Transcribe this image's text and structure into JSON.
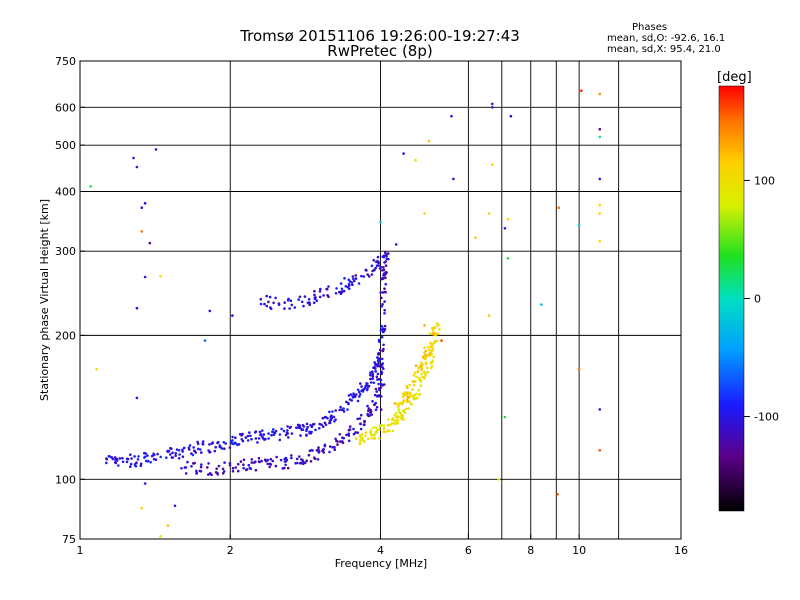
{
  "header": {
    "title": "Tromsø 20151106 19:26:00-19:27:43",
    "subtitle": "RwPretec (8p)",
    "stats_heading": "Phases",
    "stats_o": "mean, sd,O: -92.6, 16.1",
    "stats_x": "mean, sd,X:  95.4, 21.0"
  },
  "colorbar": {
    "label": "[deg]",
    "range": [
      -180,
      180
    ],
    "ticks": [
      100,
      0,
      -100
    ],
    "tick_labels": [
      "100",
      "0",
      "-100"
    ]
  },
  "chart_data": {
    "type": "scatter",
    "xlabel": "Frequency [MHz]",
    "ylabel": "Stationary phase Virtual Height [km]",
    "x_scale": "log",
    "y_scale": "log",
    "xlim": [
      1,
      16
    ],
    "ylim": [
      75,
      750
    ],
    "x_ticks": [
      1,
      2,
      4,
      6,
      8,
      10,
      16
    ],
    "y_ticks": [
      75,
      100,
      200,
      300,
      400,
      500,
      600,
      750
    ],
    "x_minor_lines": [
      1,
      2,
      4,
      6,
      7,
      8,
      9,
      10,
      12
    ],
    "y_minor_lines": [
      100,
      200,
      300,
      400,
      500,
      600
    ],
    "grid": true,
    "color_variable": "Phase [deg]",
    "traces": [
      {
        "freq": [
          1.12,
          1.22,
          1.33,
          1.45,
          1.58,
          1.72,
          1.88,
          2.05,
          2.22,
          2.4,
          2.6,
          2.8,
          3.0,
          3.2,
          3.4,
          3.6,
          3.8,
          3.9,
          4.0
        ],
        "height": [
          109,
          109,
          110,
          112,
          114,
          116,
          118,
          120,
          122,
          124,
          125,
          127,
          130,
          135,
          142,
          150,
          160,
          170,
          180
        ],
        "phase": -100
      },
      {
        "freq": [
          1.6,
          1.8,
          2.0,
          2.2,
          2.45,
          2.7,
          2.95,
          3.2,
          3.45,
          3.7,
          3.9,
          4.05
        ],
        "height": [
          106,
          105,
          106,
          107,
          108,
          109,
          112,
          117,
          124,
          133,
          145,
          160
        ],
        "phase": -112
      },
      {
        "freq": [
          2.3,
          2.6,
          2.9,
          3.2,
          3.5,
          3.8,
          4.0
        ],
        "height": [
          235,
          233,
          240,
          248,
          258,
          270,
          290
        ],
        "phase": -105
      },
      {
        "freq": [
          3.95,
          4.0,
          4.02,
          4.05,
          4.08,
          4.1
        ],
        "height": [
          140,
          170,
          200,
          240,
          270,
          300
        ],
        "phase": -108
      },
      {
        "freq": [
          3.6,
          3.8,
          4.0,
          4.2,
          4.4,
          4.6,
          4.8,
          5.0,
          5.1
        ],
        "height": [
          120,
          123,
          126,
          130,
          136,
          145,
          158,
          175,
          200
        ],
        "phase": 95
      },
      {
        "freq": [
          4.3,
          4.5,
          4.7,
          4.9,
          5.1,
          5.2
        ],
        "height": [
          140,
          150,
          165,
          180,
          195,
          210
        ],
        "phase": 110
      }
    ],
    "scattered_points": [
      {
        "freq": 1.05,
        "height": 410,
        "phase": 30
      },
      {
        "freq": 1.28,
        "height": 470,
        "phase": -100
      },
      {
        "freq": 1.3,
        "height": 450,
        "phase": -110
      },
      {
        "freq": 1.42,
        "height": 490,
        "phase": -120
      },
      {
        "freq": 1.33,
        "height": 370,
        "phase": -110
      },
      {
        "freq": 1.35,
        "height": 378,
        "phase": -100
      },
      {
        "freq": 1.33,
        "height": 330,
        "phase": 150
      },
      {
        "freq": 1.38,
        "height": 312,
        "phase": -130
      },
      {
        "freq": 1.35,
        "height": 265,
        "phase": -100
      },
      {
        "freq": 1.45,
        "height": 266,
        "phase": 100
      },
      {
        "freq": 1.3,
        "height": 228,
        "phase": -100
      },
      {
        "freq": 1.82,
        "height": 225,
        "phase": -100
      },
      {
        "freq": 1.78,
        "height": 195,
        "phase": -60
      },
      {
        "freq": 2.02,
        "height": 220,
        "phase": -100
      },
      {
        "freq": 1.3,
        "height": 148,
        "phase": -100
      },
      {
        "freq": 1.08,
        "height": 170,
        "phase": 100
      },
      {
        "freq": 1.35,
        "height": 98,
        "phase": -100
      },
      {
        "freq": 1.55,
        "height": 88,
        "phase": -100
      },
      {
        "freq": 1.33,
        "height": 87,
        "phase": 110
      },
      {
        "freq": 1.5,
        "height": 80,
        "phase": 120
      },
      {
        "freq": 1.45,
        "height": 76,
        "phase": 100
      },
      {
        "freq": 4.0,
        "height": 345,
        "phase": -20
      },
      {
        "freq": 4.3,
        "height": 310,
        "phase": -110
      },
      {
        "freq": 4.45,
        "height": 480,
        "phase": -100
      },
      {
        "freq": 4.7,
        "height": 465,
        "phase": 100
      },
      {
        "freq": 5.0,
        "height": 510,
        "phase": 120
      },
      {
        "freq": 5.55,
        "height": 575,
        "phase": -100
      },
      {
        "freq": 5.6,
        "height": 425,
        "phase": -110
      },
      {
        "freq": 4.9,
        "height": 360,
        "phase": 110
      },
      {
        "freq": 6.2,
        "height": 320,
        "phase": 120
      },
      {
        "freq": 6.6,
        "height": 360,
        "phase": 110
      },
      {
        "freq": 6.7,
        "height": 610,
        "phase": -100
      },
      {
        "freq": 6.7,
        "height": 600,
        "phase": -110
      },
      {
        "freq": 7.3,
        "height": 575,
        "phase": -110
      },
      {
        "freq": 6.7,
        "height": 455,
        "phase": 100
      },
      {
        "freq": 7.1,
        "height": 335,
        "phase": -100
      },
      {
        "freq": 7.2,
        "height": 350,
        "phase": 110
      },
      {
        "freq": 7.2,
        "height": 290,
        "phase": 30
      },
      {
        "freq": 6.6,
        "height": 220,
        "phase": 120
      },
      {
        "freq": 7.1,
        "height": 135,
        "phase": 30
      },
      {
        "freq": 6.9,
        "height": 100,
        "phase": 100
      },
      {
        "freq": 8.4,
        "height": 232,
        "phase": -20
      },
      {
        "freq": 9.1,
        "height": 370,
        "phase": 150
      },
      {
        "freq": 9.05,
        "height": 93,
        "phase": 160
      },
      {
        "freq": 10.1,
        "height": 650,
        "phase": 170
      },
      {
        "freq": 10.0,
        "height": 340,
        "phase": -20
      },
      {
        "freq": 10.0,
        "height": 170,
        "phase": 150
      },
      {
        "freq": 11.0,
        "height": 640,
        "phase": 140
      },
      {
        "freq": 11.0,
        "height": 540,
        "phase": -130
      },
      {
        "freq": 11.0,
        "height": 520,
        "phase": 10
      },
      {
        "freq": 11.0,
        "height": 425,
        "phase": -100
      },
      {
        "freq": 11.0,
        "height": 375,
        "phase": 100
      },
      {
        "freq": 11.0,
        "height": 360,
        "phase": 110
      },
      {
        "freq": 11.0,
        "height": 315,
        "phase": 110
      },
      {
        "freq": 11.0,
        "height": 140,
        "phase": -110
      },
      {
        "freq": 11.0,
        "height": 115,
        "phase": 160
      },
      {
        "freq": 4.9,
        "height": 210,
        "phase": 130
      },
      {
        "freq": 5.3,
        "height": 195,
        "phase": 160
      }
    ]
  }
}
